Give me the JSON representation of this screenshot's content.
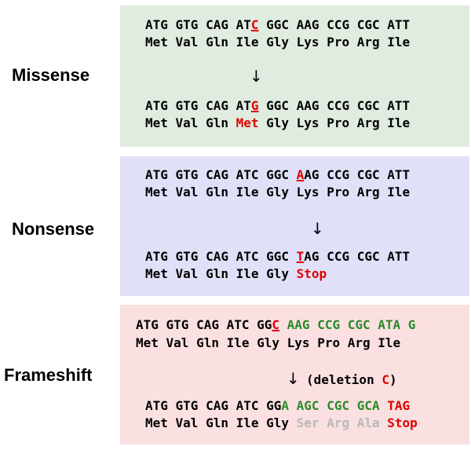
{
  "colors": {
    "missense_bg": "#e0ece0",
    "nonsense_bg": "#e0e0f8",
    "frameshift_bg": "#fae0e0",
    "black": "#000000",
    "red": "#e00000",
    "green": "#2a8a2a",
    "gray": "#b8b8b8"
  },
  "sections": [
    {
      "label": "Missense",
      "arrow": "↓",
      "note": [],
      "lines": [
        [
          {
            "t": "ATG GTG CAG AT",
            "c": "black"
          },
          {
            "t": "C",
            "c": "red",
            "u": true
          },
          {
            "t": " GGC AAG CCG CGC ATT",
            "c": "black"
          }
        ],
        [
          {
            "t": "Met Val Gln Ile Gly Lys Pro Arg Ile",
            "c": "black"
          }
        ],
        [
          {
            "t": "ATG GTG CAG AT",
            "c": "black"
          },
          {
            "t": "G",
            "c": "red",
            "u": true
          },
          {
            "t": " GGC AAG CCG CGC ATT",
            "c": "black"
          }
        ],
        [
          {
            "t": "Met Val Gln ",
            "c": "black"
          },
          {
            "t": "Met",
            "c": "red"
          },
          {
            "t": " Gly Lys Pro Arg Ile",
            "c": "black"
          }
        ]
      ]
    },
    {
      "label": "Nonsense",
      "arrow": "↓",
      "note": [],
      "lines": [
        [
          {
            "t": "ATG GTG CAG ATC GGC ",
            "c": "black"
          },
          {
            "t": "A",
            "c": "red",
            "u": true
          },
          {
            "t": "AG CCG CGC ATT",
            "c": "black"
          }
        ],
        [
          {
            "t": "Met Val Gln Ile Gly Lys Pro Arg Ile",
            "c": "black"
          }
        ],
        [
          {
            "t": "ATG GTG CAG ATC GGC ",
            "c": "black"
          },
          {
            "t": "T",
            "c": "red",
            "u": true
          },
          {
            "t": "AG CCG CGC ATT",
            "c": "black"
          }
        ],
        [
          {
            "t": "Met Val Gln Ile Gly ",
            "c": "black"
          },
          {
            "t": "Stop",
            "c": "red"
          }
        ]
      ]
    },
    {
      "label": "Frameshift",
      "arrow": "↓",
      "note": [
        {
          "t": "(deletion ",
          "c": "black"
        },
        {
          "t": "C",
          "c": "red"
        },
        {
          "t": ")",
          "c": "black"
        }
      ],
      "lines": [
        [
          {
            "t": "ATG GTG CAG ATC GG",
            "c": "black"
          },
          {
            "t": "C",
            "c": "red",
            "u": true
          },
          {
            "t": " AAG CCG CGC ATA G",
            "c": "green"
          }
        ],
        [
          {
            "t": "Met Val Gln Ile Gly Lys Pro Arg Ile",
            "c": "black"
          }
        ],
        [
          {
            "t": "ATG GTG CAG ATC GG",
            "c": "black"
          },
          {
            "t": "A AGC CGC GCA ",
            "c": "green"
          },
          {
            "t": "TAG",
            "c": "red"
          }
        ],
        [
          {
            "t": "Met Val Gln Ile Gly ",
            "c": "black"
          },
          {
            "t": "Ser Arg Ala",
            "c": "gray"
          },
          {
            "t": " ",
            "c": "black"
          },
          {
            "t": "Stop",
            "c": "red"
          }
        ]
      ]
    }
  ]
}
